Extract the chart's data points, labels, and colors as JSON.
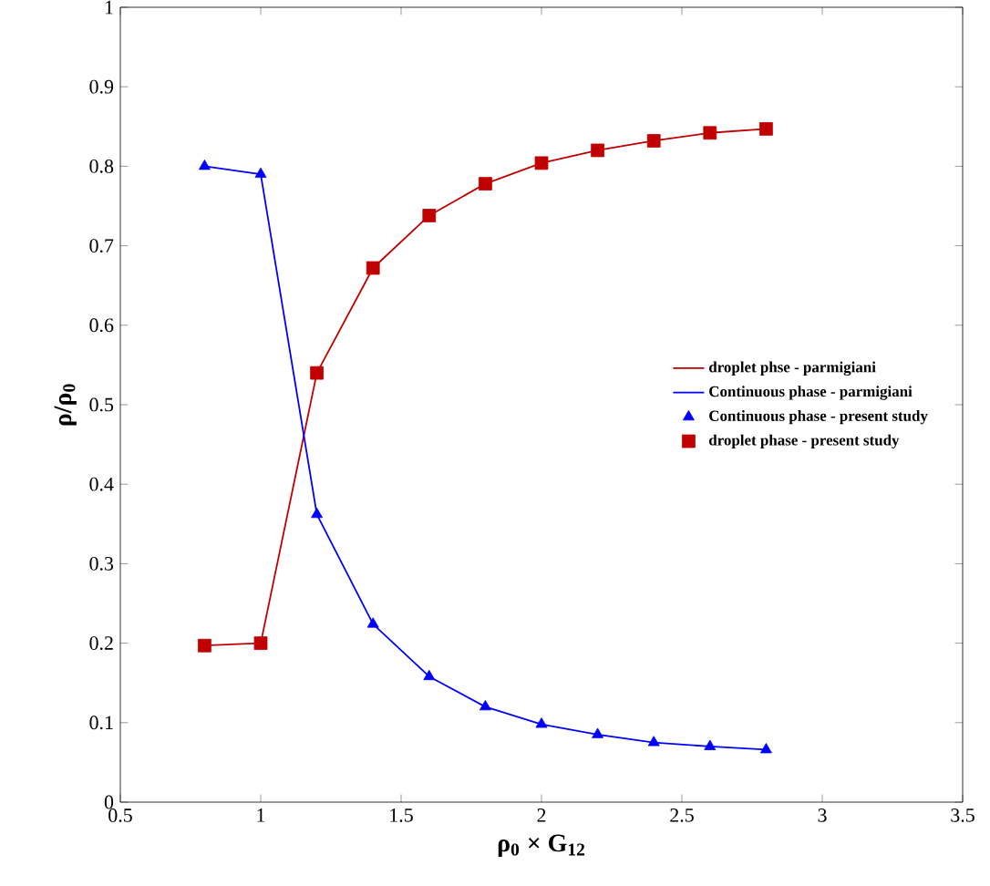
{
  "chart_data": {
    "type": "line",
    "xlabel": "ρ$_{0}$ × **G**$_{12}$",
    "ylabel": "ρ/ρ$_{0}$",
    "x": [
      0.8,
      1.0,
      1.2,
      1.4,
      1.6,
      1.8,
      2.0,
      2.2,
      2.4,
      2.6,
      2.8
    ],
    "series": [
      {
        "name": "droplet phse - parmigiani",
        "color": "#c00000",
        "marker": "none",
        "values": [
          0.197,
          0.2,
          0.54,
          0.672,
          0.738,
          0.778,
          0.804,
          0.82,
          0.832,
          0.842,
          0.847
        ]
      },
      {
        "name": "Continuous phase - parmigiani",
        "color": "#0000ff",
        "marker": "none",
        "values": [
          0.8,
          0.79,
          0.362,
          0.224,
          0.158,
          0.12,
          0.098,
          0.085,
          0.075,
          0.07,
          0.066
        ]
      },
      {
        "name": "Continuous phase - present study",
        "type": "scatter",
        "color": "#0000ff",
        "marker": "triangle",
        "values": [
          0.8,
          0.79,
          0.362,
          0.224,
          0.158,
          0.12,
          0.098,
          0.085,
          0.075,
          0.07,
          0.066
        ]
      },
      {
        "name": "droplet phase - present study",
        "type": "scatter",
        "color": "#c00000",
        "marker": "square",
        "values": [
          0.197,
          0.2,
          0.54,
          0.672,
          0.738,
          0.778,
          0.804,
          0.82,
          0.832,
          0.842,
          0.847
        ]
      }
    ],
    "xlim": [
      0.5,
      3.5
    ],
    "ylim": [
      0,
      1
    ],
    "xticks": [
      0.5,
      1,
      1.5,
      2,
      2.5,
      3,
      3.5
    ],
    "yticks": [
      0,
      0.1,
      0.2,
      0.3,
      0.4,
      0.5,
      0.6,
      0.7,
      0.8,
      0.9,
      1
    ],
    "legend": "right",
    "grid": false
  }
}
